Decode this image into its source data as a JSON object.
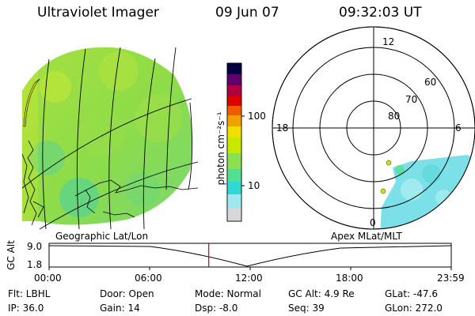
{
  "header": {
    "instrument": "Ultraviolet Imager",
    "date": "09 Jun 07",
    "time": "09:32:03 UT"
  },
  "colorbar": {
    "unit_label": "photon cm⁻²s⁻¹",
    "tick_100": "100",
    "tick_10": "10",
    "colors": [
      "#d8d8d8",
      "#9fe8f0",
      "#30d8d8",
      "#50e090",
      "#8ce050",
      "#c8e800",
      "#f0e000",
      "#f0a000",
      "#f05a00",
      "#e00000",
      "#b00040",
      "#60006c",
      "#000040"
    ]
  },
  "geo_panel": {
    "label": "Geographic Lat/Lon"
  },
  "polar_panel": {
    "label": "Apex MLat/MLT",
    "mlt_top": "12",
    "mlt_left": "18",
    "mlt_right": "6",
    "mlt_bottom": "0",
    "lat_60": "60",
    "lat_70": "70",
    "lat_80": "80"
  },
  "altitude_plot": {
    "ylabel": "GC Alt",
    "ytick_high": "9.0",
    "ytick_low": "1.8",
    "xticks": [
      "00:00",
      "06:00",
      "12:00",
      "18:00",
      "23:59"
    ],
    "current_time_fraction": 0.397
  },
  "info": {
    "filter": "Flt: LBHL",
    "ip": "IP: 36.0",
    "door": "Door: Open",
    "gain": "Gain: 14",
    "mode": "Mode: Normal",
    "dsp": "Dsp:    -8.0",
    "gc_alt": "GC Alt: 4.9 Re",
    "seq": "Seq: 39",
    "glat": "GLat: -47.6",
    "glon": "GLon: 272.0"
  }
}
